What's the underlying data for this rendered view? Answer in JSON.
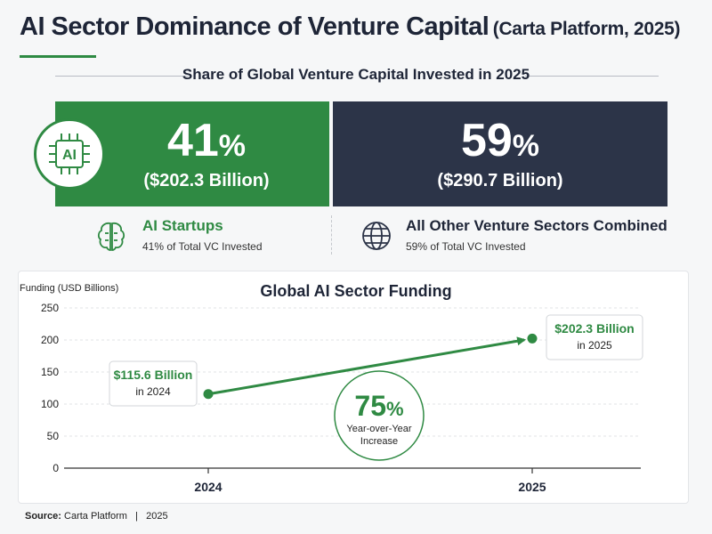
{
  "header": {
    "title_main": "AI Sector Dominance of Venture Capital",
    "title_sub": "(Carta Platform, 2025)",
    "share_heading": "Share of Global Venture Capital Invested in 2025"
  },
  "banner": {
    "ai": {
      "percent": "41",
      "percent_symbol": "%",
      "amount": "($202.3 Billion)",
      "color": "#2f8a43"
    },
    "other": {
      "percent": "59",
      "percent_symbol": "%",
      "amount": "($290.7 Billion)",
      "color": "#2c3448"
    },
    "badge_text": "AI"
  },
  "legend": {
    "ai": {
      "name": "AI Startups",
      "desc": "41% of Total VC Invested",
      "icon": "brain-icon"
    },
    "other": {
      "name": "All Other Venture Sectors Combined",
      "desc": "59% of Total VC Invested",
      "icon": "globe-icon"
    }
  },
  "chart_data": {
    "type": "line",
    "title": "Global AI Sector Funding",
    "ylabel": "Funding (USD Billions)",
    "xlabel": "",
    "categories": [
      "2024",
      "2025"
    ],
    "series": [
      {
        "values": [
          115.6,
          202.3
        ],
        "color": "#2f8a43"
      }
    ],
    "ylim": [
      0,
      250
    ],
    "yticks": [
      0,
      50,
      100,
      150,
      200,
      250
    ],
    "grid": true,
    "annotations": {
      "point_2024": {
        "value": "$115.6 Billion",
        "label": "in 2024"
      },
      "point_2025": {
        "value": "$202.3 Billion",
        "label": "in 2025"
      },
      "growth": {
        "value": "75",
        "symbol": "%",
        "label_line1": "Year-over-Year",
        "label_line2": "Increase"
      }
    }
  },
  "footer": {
    "source_label": "Source:",
    "source_text": "Carta Platform",
    "separator": "|",
    "year": "2025"
  }
}
